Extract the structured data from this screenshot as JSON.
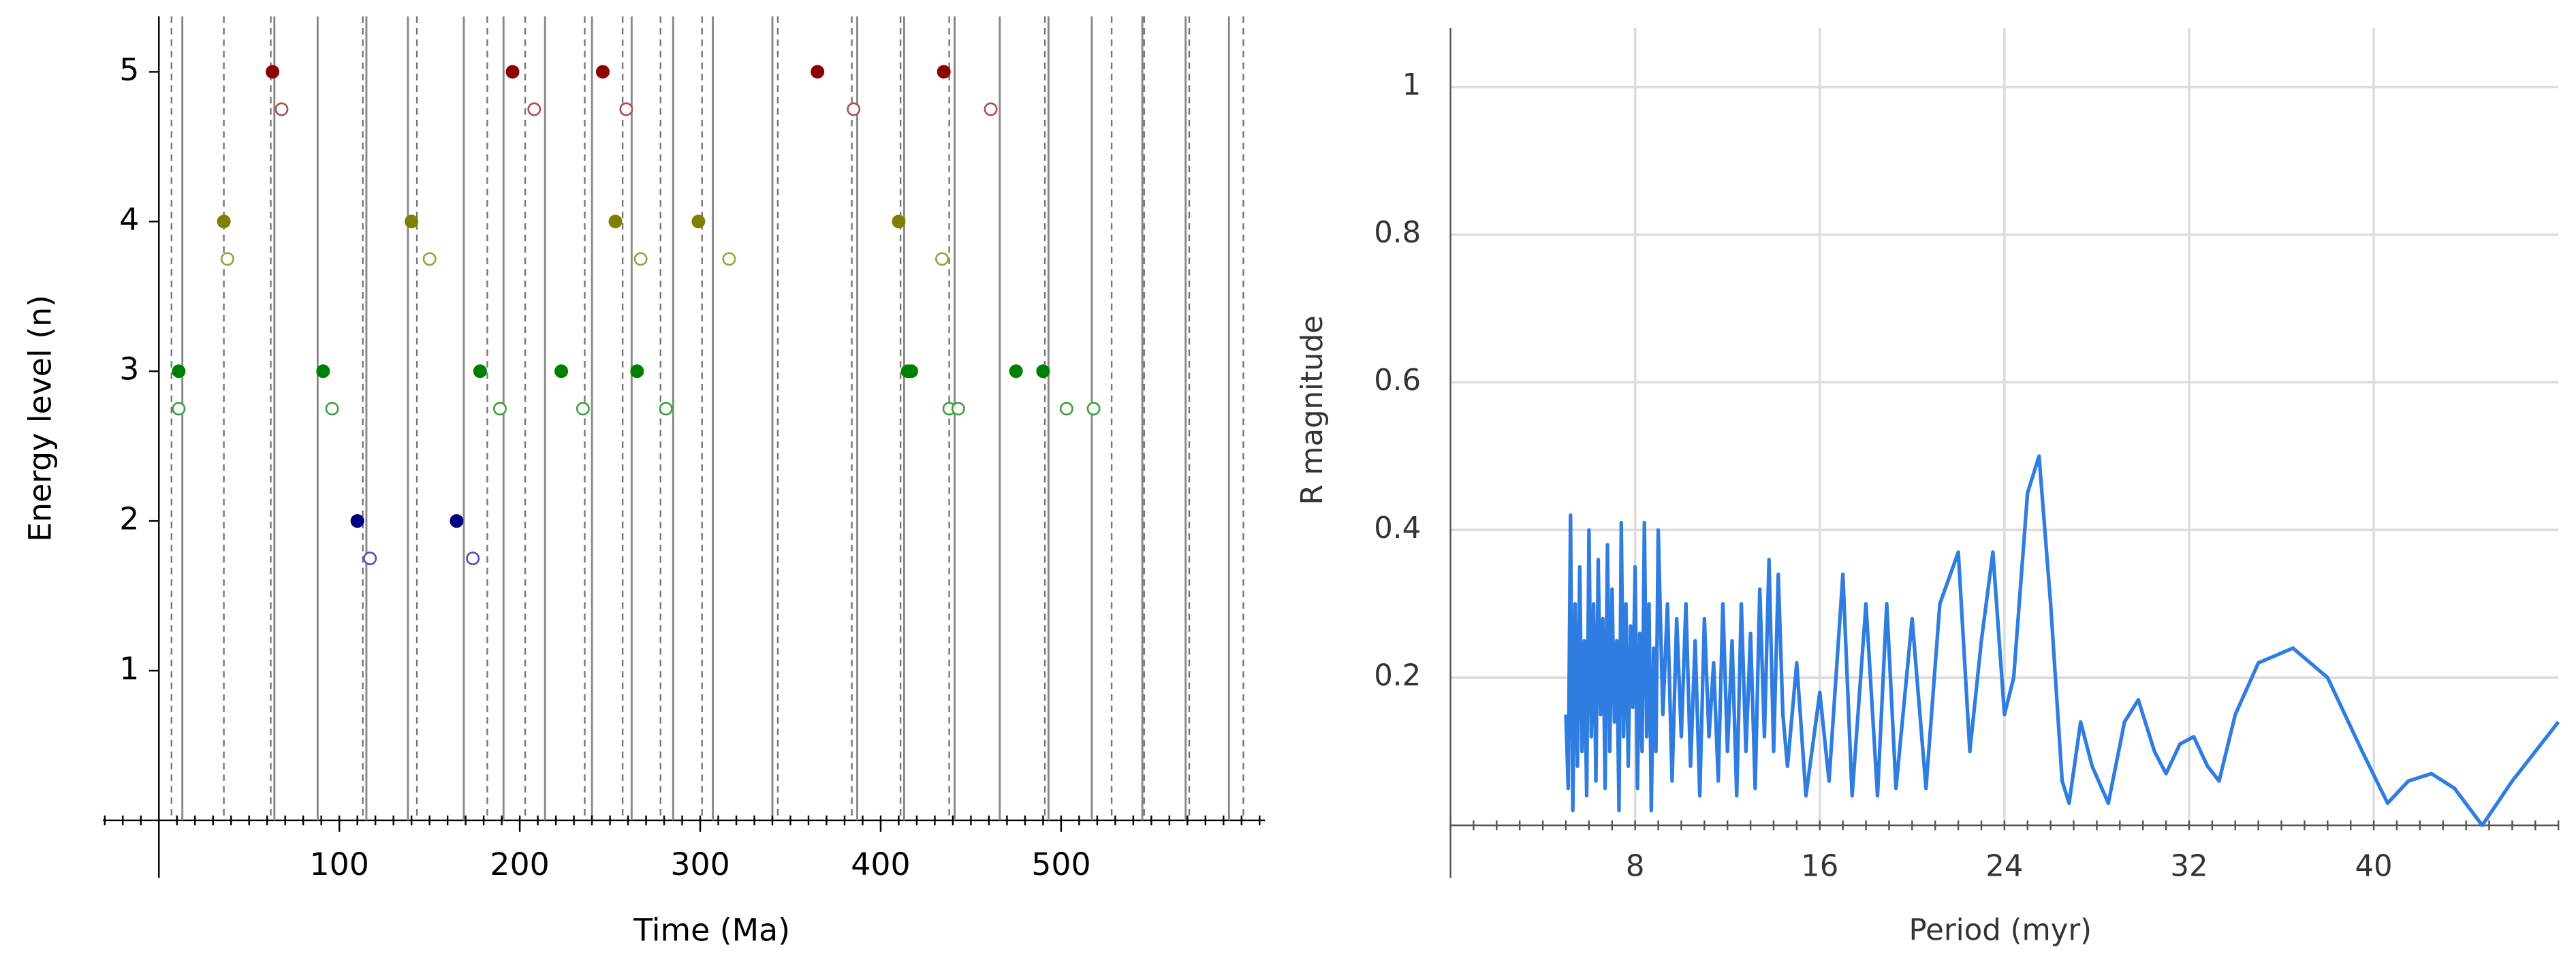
{
  "chart_data": [
    {
      "type": "scatter",
      "xlabel": "Time (Ma)",
      "ylabel": "Energy level (n)",
      "xlim": [
        -31,
        613
      ],
      "ylim": [
        0,
        5.37
      ],
      "xticks": [
        100,
        200,
        300,
        400,
        500
      ],
      "yticks": [
        1,
        2,
        3,
        4,
        5
      ],
      "minor_tick_step": 10,
      "vlines_solid": [
        13,
        64,
        88,
        115,
        138,
        169,
        191,
        214,
        240,
        262,
        285,
        307,
        340,
        387,
        413,
        441,
        466,
        493,
        517,
        545,
        569,
        593
      ],
      "vlines_dashed": [
        7,
        36,
        62,
        113,
        143,
        182,
        203,
        236,
        257,
        278,
        301,
        343,
        384,
        411,
        438,
        491,
        528,
        546,
        571,
        601
      ],
      "series": [
        {
          "color": "#8b0000",
          "filled": true,
          "x": [
            63,
            196,
            246,
            365,
            435
          ],
          "values": [
            5,
            5,
            5,
            5,
            5
          ]
        },
        {
          "color": "#b05050",
          "filled": false,
          "x": [
            68,
            208,
            259,
            385,
            461
          ],
          "values": [
            4.75,
            4.75,
            4.75,
            4.75,
            4.75
          ]
        },
        {
          "color": "#808000",
          "filled": true,
          "x": [
            36,
            140,
            253,
            299,
            410
          ],
          "values": [
            4,
            4,
            4,
            4,
            4
          ]
        },
        {
          "color": "#a0a040",
          "filled": false,
          "x": [
            38,
            150,
            267,
            316,
            434
          ],
          "values": [
            3.75,
            3.75,
            3.75,
            3.75,
            3.75
          ]
        },
        {
          "color": "#008000",
          "filled": true,
          "x": [
            11,
            91,
            178,
            223,
            265,
            415,
            417,
            475,
            490
          ],
          "values": [
            3,
            3,
            3,
            3,
            3,
            3,
            3,
            3,
            3
          ]
        },
        {
          "color": "#40a040",
          "filled": false,
          "x": [
            11,
            96,
            189,
            235,
            281,
            438,
            443,
            503,
            518
          ],
          "values": [
            2.75,
            2.75,
            2.75,
            2.75,
            2.75,
            2.75,
            2.75,
            2.75,
            2.75
          ]
        },
        {
          "color": "#000080",
          "filled": true,
          "x": [
            110,
            165
          ],
          "values": [
            2,
            2
          ]
        },
        {
          "color": "#5050c0",
          "filled": false,
          "x": [
            117,
            174
          ],
          "values": [
            1.75,
            1.75
          ]
        }
      ]
    },
    {
      "type": "line",
      "xlabel": "Period (myr)",
      "ylabel": "R magnitude",
      "xlim": [
        0,
        48
      ],
      "ylim": [
        0,
        1.08
      ],
      "xticks": [
        8,
        16,
        24,
        32,
        40
      ],
      "yticks": [
        0.2,
        0.4,
        0.6,
        0.8,
        1
      ],
      "minor_tick_step": 1,
      "grid": true,
      "series": [
        {
          "color": "#2f7de1",
          "x": [
            5.0,
            5.1,
            5.2,
            5.3,
            5.4,
            5.5,
            5.6,
            5.7,
            5.8,
            5.9,
            6.0,
            6.1,
            6.2,
            6.3,
            6.4,
            6.5,
            6.6,
            6.7,
            6.8,
            6.9,
            7.0,
            7.1,
            7.2,
            7.3,
            7.4,
            7.5,
            7.6,
            7.7,
            7.8,
            7.9,
            8.0,
            8.1,
            8.2,
            8.3,
            8.4,
            8.5,
            8.6,
            8.7,
            8.8,
            8.9,
            9.0,
            9.2,
            9.4,
            9.6,
            9.8,
            10.0,
            10.2,
            10.4,
            10.6,
            10.8,
            11.0,
            11.2,
            11.4,
            11.6,
            11.8,
            12.0,
            12.2,
            12.4,
            12.6,
            12.8,
            13.0,
            13.2,
            13.4,
            13.6,
            13.8,
            14.0,
            14.2,
            14.4,
            14.6,
            15.0,
            15.4,
            16.0,
            16.4,
            17.0,
            17.4,
            18.0,
            18.5,
            18.9,
            19.3,
            20.0,
            20.6,
            21.2,
            22.0,
            22.5,
            23.0,
            23.5,
            24.0,
            24.4,
            25.0,
            25.5,
            26.0,
            26.5,
            26.8,
            27.3,
            27.8,
            28.5,
            29.2,
            29.8,
            30.5,
            31.0,
            31.6,
            32.2,
            32.8,
            33.3,
            34.0,
            35.0,
            36.5,
            38.0,
            39.5,
            40.6,
            41.5,
            42.5,
            43.5,
            44.7,
            46.0,
            48.0
          ],
          "values": [
            0.15,
            0.05,
            0.42,
            0.02,
            0.3,
            0.08,
            0.35,
            0.1,
            0.25,
            0.04,
            0.4,
            0.12,
            0.3,
            0.06,
            0.36,
            0.15,
            0.28,
            0.05,
            0.38,
            0.1,
            0.32,
            0.14,
            0.25,
            0.02,
            0.41,
            0.12,
            0.3,
            0.08,
            0.27,
            0.16,
            0.35,
            0.05,
            0.26,
            0.1,
            0.41,
            0.12,
            0.3,
            0.02,
            0.24,
            0.1,
            0.4,
            0.15,
            0.3,
            0.06,
            0.28,
            0.12,
            0.3,
            0.08,
            0.25,
            0.04,
            0.28,
            0.12,
            0.22,
            0.06,
            0.3,
            0.1,
            0.25,
            0.04,
            0.3,
            0.1,
            0.26,
            0.05,
            0.32,
            0.12,
            0.36,
            0.1,
            0.34,
            0.15,
            0.08,
            0.22,
            0.04,
            0.18,
            0.06,
            0.34,
            0.04,
            0.3,
            0.04,
            0.3,
            0.05,
            0.28,
            0.05,
            0.3,
            0.37,
            0.1,
            0.25,
            0.37,
            0.15,
            0.2,
            0.45,
            0.5,
            0.3,
            0.06,
            0.03,
            0.14,
            0.08,
            0.03,
            0.14,
            0.17,
            0.1,
            0.07,
            0.11,
            0.12,
            0.08,
            0.06,
            0.15,
            0.22,
            0.24,
            0.2,
            0.1,
            0.03,
            0.06,
            0.07,
            0.05,
            0.0,
            0.06,
            0.14
          ]
        }
      ]
    }
  ]
}
